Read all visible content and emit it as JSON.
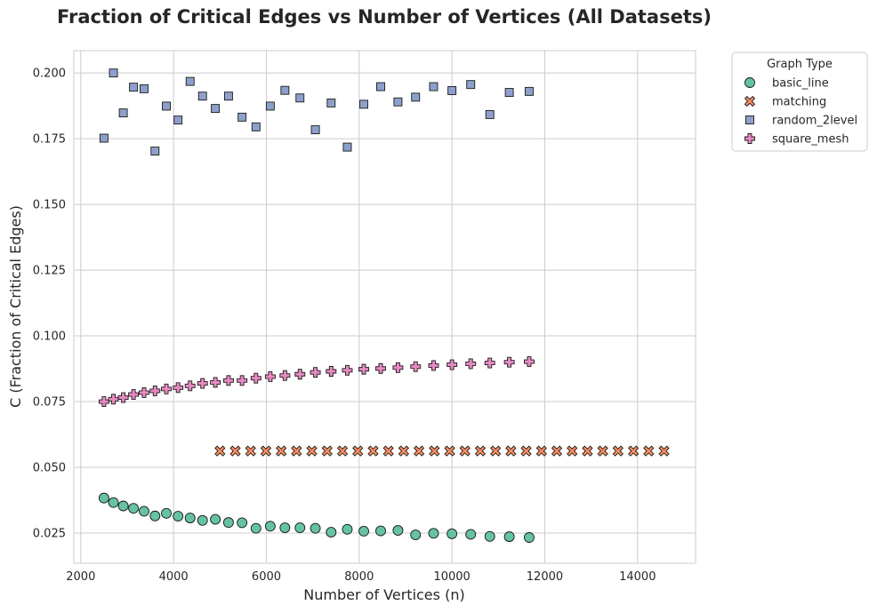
{
  "chart_data": {
    "type": "scatter",
    "title": "Fraction of Critical Edges vs Number of Vertices (All Datasets)",
    "xlabel": "Number of Vertices (n)",
    "ylabel": "C (Fraction of Critical Edges)",
    "xlim": [
      1850,
      15250
    ],
    "ylim": [
      0.0135,
      0.2085
    ],
    "xticks": [
      2000,
      4000,
      6000,
      8000,
      10000,
      12000,
      14000
    ],
    "yticks": [
      0.025,
      0.05,
      0.075,
      0.1,
      0.125,
      0.15,
      0.175,
      0.2
    ],
    "xtick_labels": [
      "2000",
      "4000",
      "6000",
      "8000",
      "10000",
      "12000",
      "14000"
    ],
    "ytick_labels": [
      "0.025",
      "0.050",
      "0.075",
      "0.100",
      "0.125",
      "0.150",
      "0.175",
      "0.200"
    ],
    "grid": true,
    "legend": {
      "title": "Graph Type",
      "placement": "outside-top-right"
    },
    "series": [
      {
        "name": "basic_line",
        "marker": "circle",
        "color": "#66c2a5",
        "points": [
          [
            2500,
            0.0383
          ],
          [
            2704,
            0.0366
          ],
          [
            2916,
            0.0353
          ],
          [
            3136,
            0.0344
          ],
          [
            3364,
            0.0333
          ],
          [
            3600,
            0.0315
          ],
          [
            3844,
            0.0325
          ],
          [
            4096,
            0.0314
          ],
          [
            4356,
            0.0307
          ],
          [
            4624,
            0.0298
          ],
          [
            4900,
            0.0302
          ],
          [
            5184,
            0.029
          ],
          [
            5476,
            0.0289
          ],
          [
            5776,
            0.0268
          ],
          [
            6084,
            0.0276
          ],
          [
            6400,
            0.027
          ],
          [
            6724,
            0.027
          ],
          [
            7056,
            0.0268
          ],
          [
            7396,
            0.0253
          ],
          [
            7744,
            0.0264
          ],
          [
            8100,
            0.0257
          ],
          [
            8464,
            0.0258
          ],
          [
            8836,
            0.026
          ],
          [
            9216,
            0.0243
          ],
          [
            9604,
            0.0249
          ],
          [
            10000,
            0.0247
          ],
          [
            10404,
            0.0245
          ],
          [
            10816,
            0.0237
          ],
          [
            11236,
            0.0236
          ],
          [
            11664,
            0.0233
          ]
        ]
      },
      {
        "name": "matching",
        "marker": "x",
        "color": "#fc8d62",
        "points": [
          [
            5000,
            0.0562
          ],
          [
            5330,
            0.0562
          ],
          [
            5660,
            0.0562
          ],
          [
            5990,
            0.0562
          ],
          [
            6320,
            0.0562
          ],
          [
            6650,
            0.0562
          ],
          [
            6980,
            0.0562
          ],
          [
            7310,
            0.0562
          ],
          [
            7640,
            0.0562
          ],
          [
            7970,
            0.0562
          ],
          [
            8300,
            0.0562
          ],
          [
            8630,
            0.0562
          ],
          [
            8960,
            0.0562
          ],
          [
            9290,
            0.0562
          ],
          [
            9620,
            0.0562
          ],
          [
            9950,
            0.0562
          ],
          [
            10280,
            0.0562
          ],
          [
            10610,
            0.0562
          ],
          [
            10940,
            0.0562
          ],
          [
            11270,
            0.0562
          ],
          [
            11600,
            0.0562
          ],
          [
            11930,
            0.0562
          ],
          [
            12260,
            0.0562
          ],
          [
            12590,
            0.0562
          ],
          [
            12920,
            0.0562
          ],
          [
            13250,
            0.0562
          ],
          [
            13580,
            0.0562
          ],
          [
            13910,
            0.0562
          ],
          [
            14240,
            0.0562
          ],
          [
            14570,
            0.0562
          ]
        ]
      },
      {
        "name": "random_2level",
        "marker": "square",
        "color": "#8da0cb",
        "points": [
          [
            2500,
            0.1752
          ],
          [
            2704,
            0.2
          ],
          [
            2916,
            0.1848
          ],
          [
            3136,
            0.1946
          ],
          [
            3364,
            0.194
          ],
          [
            3600,
            0.1703
          ],
          [
            3844,
            0.1874
          ],
          [
            4096,
            0.1821
          ],
          [
            4356,
            0.1968
          ],
          [
            4624,
            0.1912
          ],
          [
            4900,
            0.1865
          ],
          [
            5184,
            0.1912
          ],
          [
            5476,
            0.1832
          ],
          [
            5776,
            0.1795
          ],
          [
            6084,
            0.1874
          ],
          [
            6400,
            0.1934
          ],
          [
            6724,
            0.1905
          ],
          [
            7056,
            0.1784
          ],
          [
            7396,
            0.1886
          ],
          [
            7744,
            0.1718
          ],
          [
            8100,
            0.1881
          ],
          [
            8464,
            0.1948
          ],
          [
            8836,
            0.189
          ],
          [
            9216,
            0.1908
          ],
          [
            9604,
            0.1948
          ],
          [
            10000,
            0.1933
          ],
          [
            10404,
            0.1956
          ],
          [
            10816,
            0.1842
          ],
          [
            11236,
            0.1926
          ],
          [
            11664,
            0.193
          ]
        ]
      },
      {
        "name": "square_mesh",
        "marker": "plus",
        "color": "#e78ac3",
        "points": [
          [
            2500,
            0.075
          ],
          [
            2704,
            0.0759
          ],
          [
            2916,
            0.0765
          ],
          [
            3136,
            0.0777
          ],
          [
            3364,
            0.0784
          ],
          [
            3600,
            0.0791
          ],
          [
            3844,
            0.0798
          ],
          [
            4096,
            0.0803
          ],
          [
            4356,
            0.081
          ],
          [
            4624,
            0.0819
          ],
          [
            4900,
            0.0823
          ],
          [
            5184,
            0.083
          ],
          [
            5476,
            0.083
          ],
          [
            5776,
            0.0839
          ],
          [
            6084,
            0.0845
          ],
          [
            6400,
            0.0849
          ],
          [
            6724,
            0.0854
          ],
          [
            7056,
            0.0861
          ],
          [
            7396,
            0.0865
          ],
          [
            7744,
            0.0869
          ],
          [
            8100,
            0.0873
          ],
          [
            8464,
            0.0876
          ],
          [
            8836,
            0.0879
          ],
          [
            9216,
            0.0883
          ],
          [
            9604,
            0.0887
          ],
          [
            10000,
            0.089
          ],
          [
            10404,
            0.0894
          ],
          [
            10816,
            0.0897
          ],
          [
            11236,
            0.09
          ],
          [
            11664,
            0.0902
          ]
        ]
      }
    ]
  }
}
